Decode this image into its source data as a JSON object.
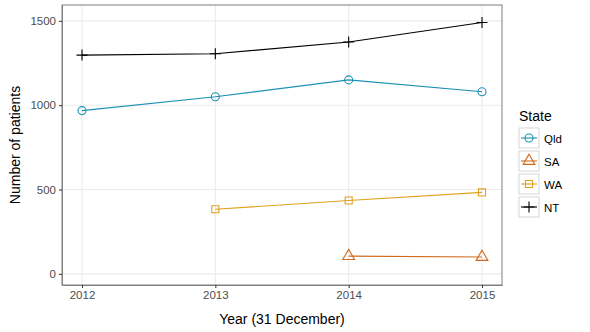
{
  "chart_data": {
    "type": "line",
    "x_label": "Year (31 December)",
    "y_label": "Number of patients",
    "legend_title": "State",
    "x": [
      2012,
      2013,
      2014,
      2015
    ],
    "series": [
      {
        "name": "Qld",
        "color": "#1a91b4",
        "marker": "circle",
        "values": [
          968,
          1050,
          1150,
          1080
        ]
      },
      {
        "name": "SA",
        "color": "#d06a1c",
        "marker": "triangle",
        "values": [
          null,
          null,
          105,
          100
        ]
      },
      {
        "name": "WA",
        "color": "#e0a01e",
        "marker": "square",
        "values": [
          null,
          383,
          435,
          483
        ]
      },
      {
        "name": "NT",
        "color": "#000000",
        "marker": "plus",
        "values": [
          1297,
          1305,
          1375,
          1490
        ]
      }
    ],
    "xlim": [
      2011.85,
      2015.15
    ],
    "xticks": [
      2012,
      2013,
      2014,
      2015
    ],
    "ylim": [
      -66,
      1594
    ],
    "yticks": [
      0,
      500,
      1000,
      1500
    ],
    "grid": true,
    "legend": "right"
  }
}
